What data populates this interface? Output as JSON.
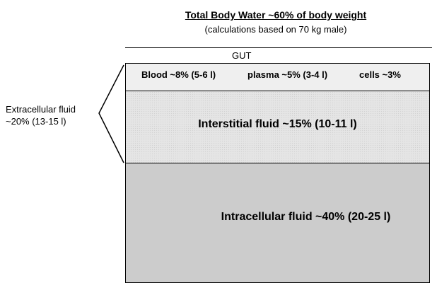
{
  "header": {
    "title": "Total Body Water  ~60% of body weight",
    "subtitle": "(calculations based on 70 kg male)"
  },
  "gut": {
    "label": "GUT"
  },
  "blood_row": {
    "blood": "Blood  ~8% (5-6 l)",
    "plasma": "plasma ~5% (3-4 l)",
    "cells": "cells  ~3%"
  },
  "interstitial": {
    "label": "Interstitial fluid  ~15% (10-11 l)"
  },
  "intracellular": {
    "label": "Intracellular fluid  ~40% (20-25 l)"
  },
  "extracellular": {
    "line1": "Extracellular fluid",
    "line2": "~20% (13-15 l)"
  }
}
